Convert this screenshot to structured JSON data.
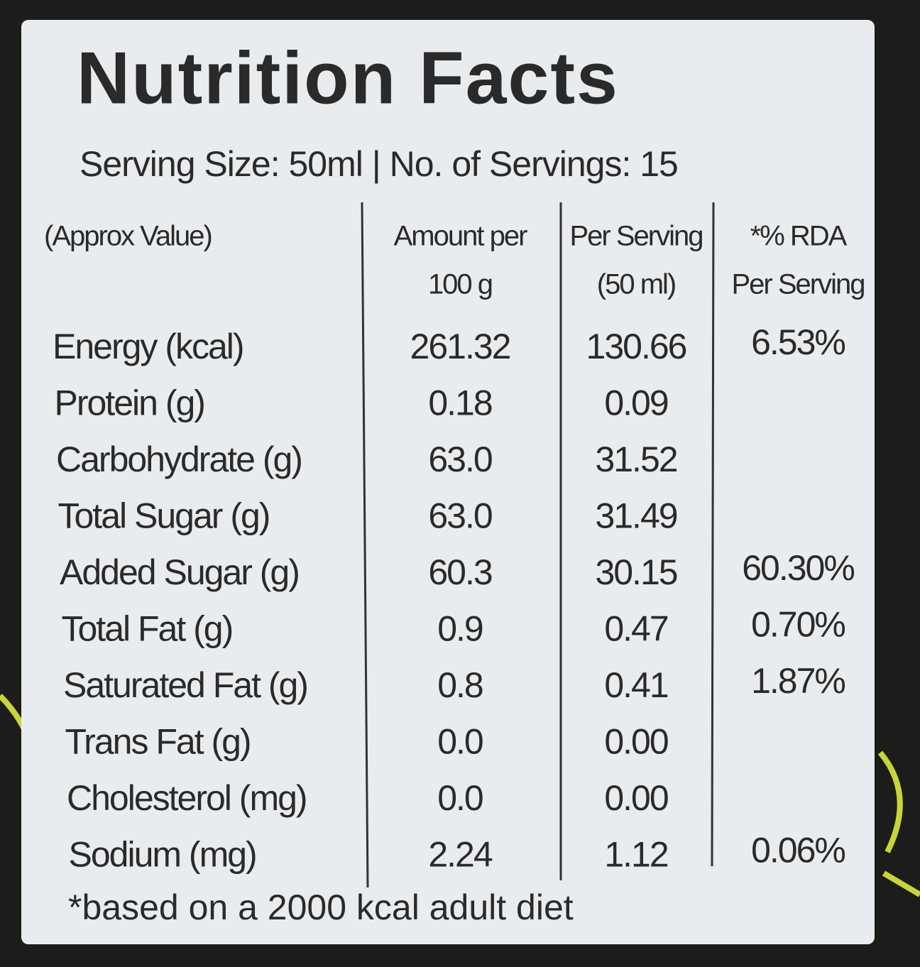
{
  "header": {
    "title": "Nutrition Facts",
    "serving": "Serving Size: 50ml | No. of Servings: 15"
  },
  "table": {
    "columns": [
      [
        "(Approx Value)"
      ],
      [
        "Amount per",
        "100 g"
      ],
      [
        "Per Serving",
        "(50 ml)"
      ],
      [
        "*% RDA",
        "Per Serving"
      ]
    ],
    "rows": [
      {
        "nutrient": "Energy (kcal)",
        "per_100g": "261.32",
        "per_serving": "130.66",
        "rda": "6.53%"
      },
      {
        "nutrient": "Protein (g)",
        "per_100g": "0.18",
        "per_serving": "0.09"
      },
      {
        "nutrient": "Carbohydrate (g)",
        "per_100g": "63.0",
        "per_serving": "31.52"
      },
      {
        "nutrient": "Total Sugar (g)",
        "per_100g": "63.0",
        "per_serving": "31.49"
      },
      {
        "nutrient": "Added Sugar (g)",
        "per_100g": "60.3",
        "per_serving": "30.15",
        "rda": "60.30%"
      },
      {
        "nutrient": "Total Fat (g)",
        "per_100g": "0.9",
        "per_serving": "0.47",
        "rda": "0.70%"
      },
      {
        "nutrient": "Saturated Fat (g)",
        "per_100g": "0.8",
        "per_serving": "0.41",
        "rda": "1.87%"
      },
      {
        "nutrient": "Trans Fat (g)",
        "per_100g": "0.0",
        "per_serving": "0.00"
      },
      {
        "nutrient": "Cholesterol (mg)",
        "per_100g": "0.0",
        "per_serving": "0.00"
      },
      {
        "nutrient": "Sodium (mg)",
        "per_100g": "2.24",
        "per_serving": "1.12",
        "rda": "0.06%"
      }
    ]
  },
  "footnote": "*based on a 2000 kcal adult diet"
}
